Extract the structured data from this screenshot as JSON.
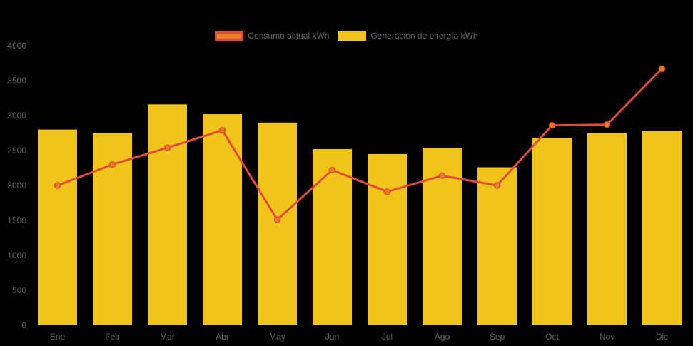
{
  "colors": {
    "background": "#000000",
    "bar_fill": "#f0c419",
    "line_stroke": "#e24b3c",
    "point_fill": "#e67e22",
    "tick_text": "#666666",
    "legend_text": "#666666"
  },
  "chart_data": {
    "type": "bar+line",
    "title": "",
    "xlabel": "",
    "ylabel": "",
    "categories": [
      "Ene",
      "Feb",
      "Mar",
      "Abr",
      "May",
      "Jun",
      "Jul",
      "Ago",
      "Sep",
      "Oct",
      "Nov",
      "Dic"
    ],
    "series": [
      {
        "name": "Consumo actual kWh",
        "type": "line",
        "color": "#e24b3c",
        "marker_fill": "#e67e22",
        "values": [
          2000,
          2300,
          2540,
          2790,
          1510,
          2220,
          1910,
          2140,
          2000,
          2860,
          2870,
          3670
        ]
      },
      {
        "name": "Generación de energía kWh",
        "type": "bar",
        "color": "#f0c419",
        "values": [
          2800,
          2750,
          3160,
          3020,
          2900,
          2520,
          2450,
          2540,
          2260,
          2680,
          2750,
          2780
        ]
      }
    ],
    "ylim": [
      0,
      4000
    ],
    "yticks": [
      0,
      500,
      1000,
      1500,
      2000,
      2500,
      3000,
      3500,
      4000
    ],
    "grid": false,
    "legend_position": "top"
  }
}
